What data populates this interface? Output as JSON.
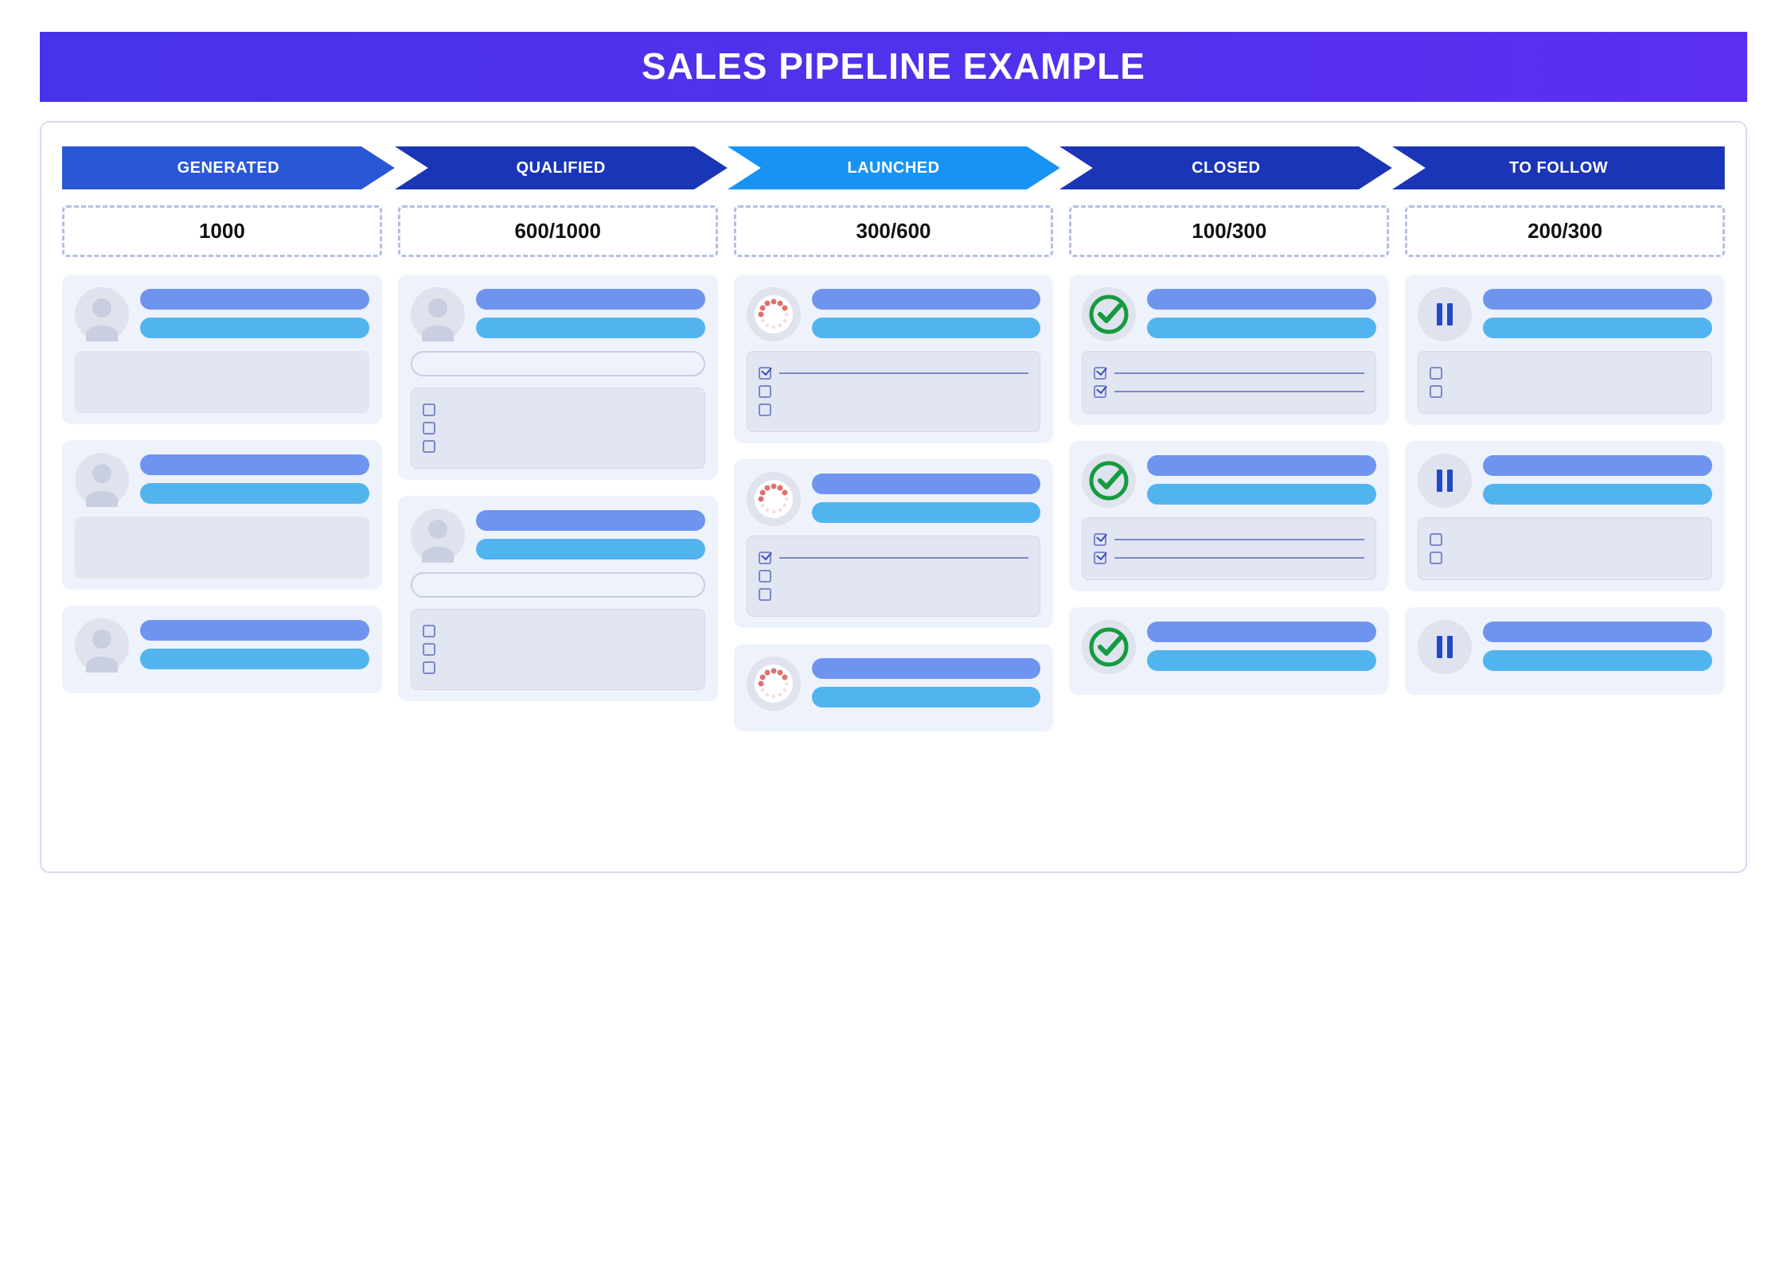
{
  "title": "SALES PIPELINE EXAMPLE",
  "colors": {
    "title_bg_from": "#4833e8",
    "title_bg_to": "#5a2ff0",
    "panel_border": "#d6dcf0",
    "dashed_border": "#b3bfe6",
    "card_bg": "#eef2fb",
    "block_bg": "#e1e6f2",
    "pill1": "#6f94ef",
    "pill2": "#52b4ef",
    "avatar_bg": "#dfe3ee",
    "avatar_fill": "#c9cfe0",
    "check_green": "#149b3f",
    "pause_blue": "#2447c8",
    "spinner_red": "#e07070",
    "chevron_colors": [
      "#2a57d6",
      "#1a35b5",
      "#1893f4",
      "#1a35b5",
      "#1a35b5"
    ]
  },
  "stages": [
    {
      "label": "GENERATED",
      "bg": "#2a57d6"
    },
    {
      "label": "QUALIFIED",
      "bg": "#1a35b5"
    },
    {
      "label": "LAUNCHED",
      "bg": "#1893f4"
    },
    {
      "label": "CLOSED",
      "bg": "#1a35b5"
    },
    {
      "label": "TO FOLLOW",
      "bg": "#1a35b5"
    }
  ],
  "counts": [
    "1000",
    "600/1000",
    "300/600",
    "100/300",
    "200/300"
  ],
  "columns": [
    {
      "stage": "GENERATED",
      "cards": [
        {
          "icon": "avatar",
          "body": "block"
        },
        {
          "icon": "avatar",
          "body": "block"
        },
        {
          "icon": "avatar",
          "body": "none"
        }
      ]
    },
    {
      "stage": "QUALIFIED",
      "cards": [
        {
          "icon": "avatar",
          "body": "capsule_checklist",
          "checklist": [
            false,
            false,
            false
          ]
        },
        {
          "icon": "avatar",
          "body": "capsule_checklist",
          "checklist": [
            false,
            false,
            false
          ]
        }
      ]
    },
    {
      "stage": "LAUNCHED",
      "cards": [
        {
          "icon": "spinner",
          "body": "checklist",
          "checklist": [
            true,
            false,
            false
          ]
        },
        {
          "icon": "spinner",
          "body": "checklist",
          "checklist": [
            true,
            false,
            false
          ]
        },
        {
          "icon": "spinner",
          "body": "none"
        }
      ]
    },
    {
      "stage": "CLOSED",
      "cards": [
        {
          "icon": "check",
          "body": "checklist_lines",
          "checklist": [
            true,
            true
          ]
        },
        {
          "icon": "check",
          "body": "checklist_lines",
          "checklist": [
            true,
            true
          ]
        },
        {
          "icon": "check",
          "body": "none"
        }
      ]
    },
    {
      "stage": "TO FOLLOW",
      "cards": [
        {
          "icon": "pause",
          "body": "checklist_empty",
          "checklist": [
            false,
            false
          ]
        },
        {
          "icon": "pause",
          "body": "checklist_empty",
          "checklist": [
            false,
            false
          ]
        },
        {
          "icon": "pause",
          "body": "none"
        }
      ]
    }
  ]
}
